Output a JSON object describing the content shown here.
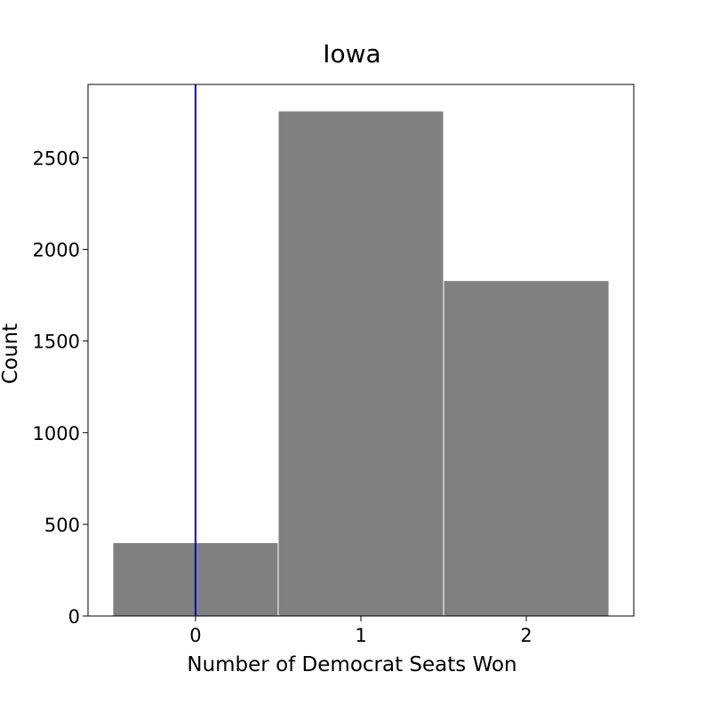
{
  "chart_data": {
    "type": "bar",
    "title": "Iowa",
    "xlabel": "Number of Democrat Seats Won",
    "ylabel": "Count",
    "categories": [
      "0",
      "1",
      "2"
    ],
    "x": [
      0,
      1,
      2
    ],
    "values": [
      400,
      2755,
      1830
    ],
    "xlim": [
      -0.65,
      2.65
    ],
    "ylim": [
      0,
      2900
    ],
    "yticks": [
      0,
      500,
      1000,
      1500,
      2000,
      2500
    ],
    "reference_line_x": 0,
    "grid": false,
    "legend": "none",
    "colors": {
      "bar": "#808080",
      "bar_edge": "#ffffff",
      "reference_line": "#0000cc",
      "axes": "#000000"
    }
  }
}
